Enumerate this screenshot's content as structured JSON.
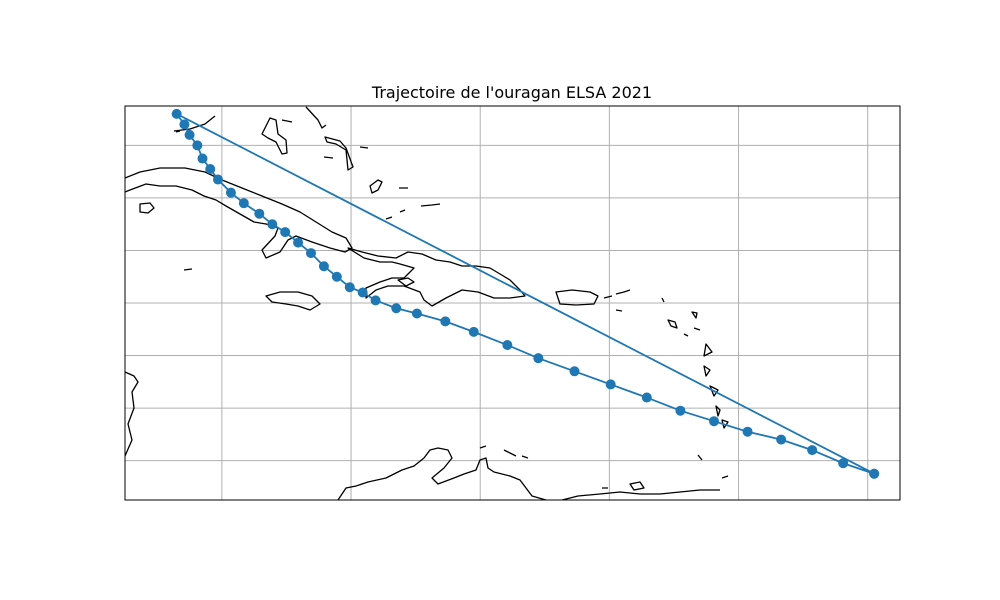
{
  "chart_data": {
    "type": "line",
    "title": "Trajectoire de l'ouragan ELSA 2021",
    "marker": "circle",
    "line_color": "#1f77b4",
    "grid": true,
    "xlim": [
      -85,
      -55
    ],
    "ylim": [
      10,
      25
    ],
    "x_gridlines": [
      -81.25,
      -76.25,
      -71.25,
      -66.25,
      -61.25,
      -56.25
    ],
    "y_gridlines": [
      11.5,
      13.5,
      15.5,
      17.5,
      19.5,
      21.5,
      23.5
    ],
    "series": [
      {
        "points": [
          {
            "x": -56.0,
            "y": 11.0
          },
          {
            "x": -57.2,
            "y": 11.4
          },
          {
            "x": -58.4,
            "y": 11.9
          },
          {
            "x": -59.6,
            "y": 12.3
          },
          {
            "x": -60.9,
            "y": 12.6
          },
          {
            "x": -62.2,
            "y": 13.0
          },
          {
            "x": -63.5,
            "y": 13.4
          },
          {
            "x": -64.8,
            "y": 13.9
          },
          {
            "x": -66.2,
            "y": 14.4
          },
          {
            "x": -67.6,
            "y": 14.9
          },
          {
            "x": -69.0,
            "y": 15.4
          },
          {
            "x": -70.2,
            "y": 15.9
          },
          {
            "x": -71.5,
            "y": 16.4
          },
          {
            "x": -72.6,
            "y": 16.8
          },
          {
            "x": -73.7,
            "y": 17.1
          },
          {
            "x": -74.5,
            "y": 17.3
          },
          {
            "x": -75.3,
            "y": 17.6
          },
          {
            "x": -75.8,
            "y": 17.9
          },
          {
            "x": -76.3,
            "y": 18.1
          },
          {
            "x": -76.8,
            "y": 18.5
          },
          {
            "x": -77.3,
            "y": 18.9
          },
          {
            "x": -77.8,
            "y": 19.4
          },
          {
            "x": -78.3,
            "y": 19.8
          },
          {
            "x": -78.8,
            "y": 20.2
          },
          {
            "x": -79.3,
            "y": 20.5
          },
          {
            "x": -79.8,
            "y": 20.9
          },
          {
            "x": -80.4,
            "y": 21.3
          },
          {
            "x": -80.9,
            "y": 21.7
          },
          {
            "x": -81.4,
            "y": 22.2
          },
          {
            "x": -81.7,
            "y": 22.6
          },
          {
            "x": -82.0,
            "y": 23.0
          },
          {
            "x": -82.2,
            "y": 23.5
          },
          {
            "x": -82.5,
            "y": 23.9
          },
          {
            "x": -82.7,
            "y": 24.3
          },
          {
            "x": -83.0,
            "y": 24.7
          },
          {
            "x": -56.0,
            "y": 11.0
          }
        ]
      }
    ]
  }
}
